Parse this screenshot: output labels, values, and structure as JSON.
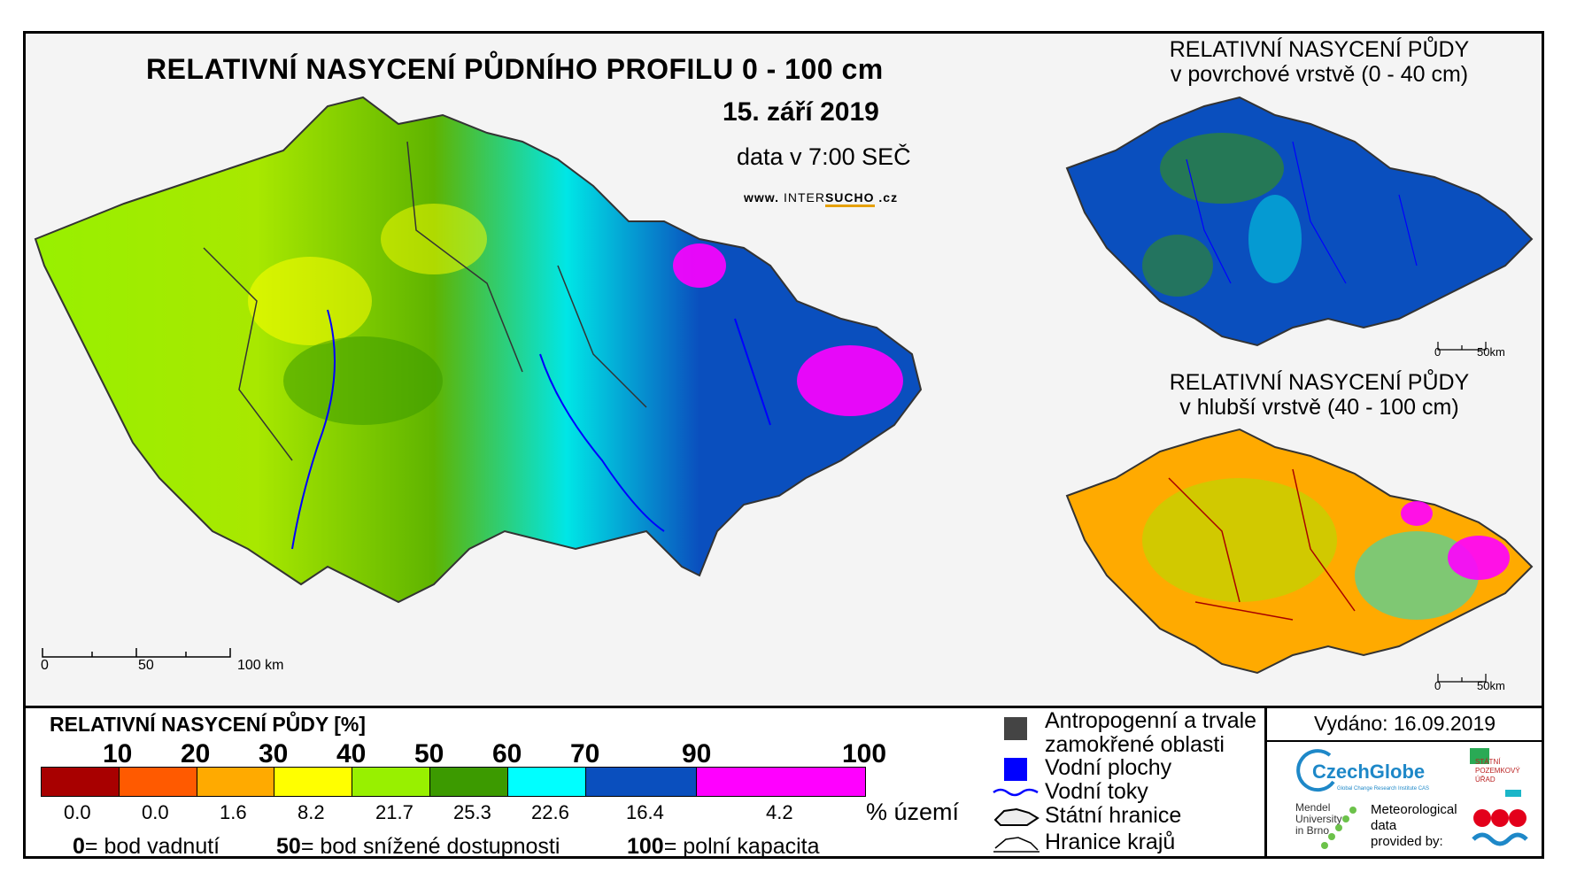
{
  "header": {
    "title": "RELATIVNÍ NASYCENÍ PŮDNÍHO PROFILU 0 - 100 cm",
    "date": "15. září 2019",
    "data_time": "data v 7:00 SEČ",
    "web_prefix": "www. ",
    "web_inter": "INTER",
    "web_sucho": "SUCHO",
    "web_suffix": " .cz"
  },
  "main_map": {
    "scale_labels": [
      "0",
      "50",
      "100 km"
    ]
  },
  "inset_top": {
    "title_line1": "RELATIVNÍ NASYCENÍ PŮDY",
    "title_line2": "v povrchové vrstvě (0 - 40 cm)",
    "scale_labels": [
      "0",
      "50km"
    ]
  },
  "inset_bottom": {
    "title_line1": "RELATIVNÍ NASYCENÍ PŮDY",
    "title_line2": "v hlubší vrstvě (40 - 100 cm)",
    "scale_labels": [
      "0",
      "50km"
    ]
  },
  "legend": {
    "title": "RELATIVNÍ NASYCENÍ PŮDY [%]",
    "ticks": [
      "10",
      "20",
      "30",
      "40",
      "50",
      "60",
      "70",
      "90",
      "100"
    ],
    "classes": [
      {
        "color": "#a80000",
        "pct": "0.0"
      },
      {
        "color": "#ff5a00",
        "pct": "0.0"
      },
      {
        "color": "#ffaa00",
        "pct": "1.6"
      },
      {
        "color": "#ffff00",
        "pct": "8.2"
      },
      {
        "color": "#98f000",
        "pct": "21.7"
      },
      {
        "color": "#3c9a00",
        "pct": "25.3"
      },
      {
        "color": "#00ffff",
        "pct": "22.6"
      },
      {
        "color": "#0a4fbe",
        "pct": "16.4"
      },
      {
        "color": "#ff00ff",
        "pct": "4.2"
      }
    ],
    "unit": "% území",
    "notes": [
      {
        "num": "0",
        "text": "= bod vadnutí"
      },
      {
        "num": "50",
        "text": "= bod snížené dostupnosti"
      },
      {
        "num": "100",
        "text": "= polní kapacita"
      }
    ],
    "items": [
      {
        "label": "Antropogenní a trvale",
        "label2": "zamokřené oblasti",
        "color": "#444444"
      },
      {
        "label": "Vodní plochy",
        "color": "#0000ff"
      },
      {
        "label": "Vodní toky",
        "color": "#0000ff"
      },
      {
        "label": "Státní hranice",
        "color": "#000000"
      },
      {
        "label": "Hranice krajů",
        "color": "#000000"
      }
    ]
  },
  "footer": {
    "issued": "Vydáno: 16.09.2019",
    "czechglobe": "CzechGlobe",
    "czechglobe_sub": "Global Change Research Institute CAS",
    "spu_line1": "STÁTNÍ",
    "spu_line2": "POZEMKOVÝ",
    "spu_line3": "ÚŘAD",
    "mendel_line1": "Mendel",
    "mendel_line2": "University",
    "mendel_line3": "in Brno",
    "meteo_line1": "Meteorological",
    "meteo_line2": "data",
    "meteo_line3": "provided by:"
  }
}
